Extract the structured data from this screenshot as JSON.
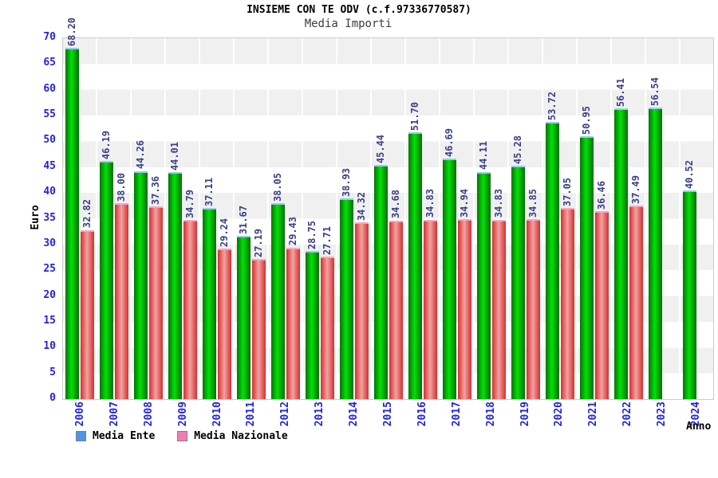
{
  "chart_data": {
    "type": "bar",
    "title": "INSIEME CON TE ODV (c.f.97336770587)",
    "subtitle": "Media Importi",
    "xlabel": "Anno",
    "ylabel": "Euro",
    "ylim": [
      0,
      70
    ],
    "yticks": [
      0,
      5,
      10,
      15,
      20,
      25,
      30,
      35,
      40,
      45,
      50,
      55,
      60,
      65,
      70
    ],
    "grid": "horizontal-bands-alternating",
    "legend_position": "bottom-left",
    "categories": [
      "2006",
      "2007",
      "2008",
      "2009",
      "2010",
      "2011",
      "2012",
      "2013",
      "2014",
      "2015",
      "2016",
      "2017",
      "2018",
      "2019",
      "2020",
      "2021",
      "2022",
      "2023",
      "2024"
    ],
    "series": [
      {
        "name": "Media Ente",
        "key": "media-ente",
        "values": [
          68.2,
          46.19,
          44.26,
          44.01,
          37.11,
          31.67,
          38.05,
          28.75,
          38.93,
          45.44,
          51.7,
          46.69,
          44.11,
          45.28,
          53.72,
          50.95,
          56.41,
          56.54,
          40.52
        ]
      },
      {
        "name": "Media Nazionale",
        "key": "media-nazionale",
        "values": [
          32.82,
          38.0,
          37.36,
          34.79,
          29.24,
          27.19,
          29.43,
          27.71,
          34.32,
          34.68,
          34.83,
          34.94,
          34.83,
          34.85,
          37.05,
          36.46,
          37.49,
          null,
          null
        ]
      }
    ]
  },
  "legend": {
    "items": [
      {
        "label": "Media Ente",
        "swatch_color": "#4f94e8",
        "icon": "blue-square-icon"
      },
      {
        "label": "Media Nazionale",
        "swatch_color": "#ef7fb3",
        "icon": "pink-square-icon"
      }
    ]
  },
  "colors": {
    "bar_green_edge": "#077207",
    "bar_green_center": "#00e207",
    "bar_green_cap": "#9ec7ef",
    "bar_red_edge": "#d62e2e",
    "bar_red_center": "#f2a2a2",
    "bar_red_cap": "#f3a9c4",
    "band_gray": "#f0f0f0",
    "plot_border": "#cccccc",
    "tick_text": "#2323dd",
    "value_text": "#3a4086"
  }
}
